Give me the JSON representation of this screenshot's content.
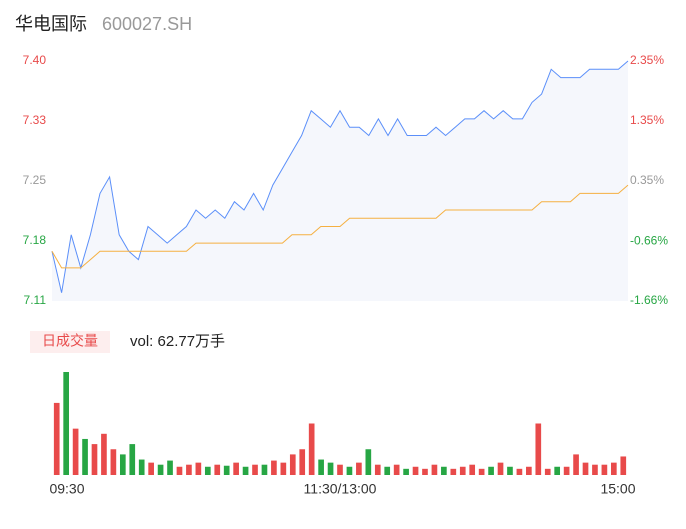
{
  "header": {
    "name": "华电国际",
    "code": "600027.SH"
  },
  "chart_data": [
    {
      "type": "line",
      "x": [
        0,
        4,
        8,
        12,
        16,
        20,
        24,
        28,
        32,
        36,
        40,
        44,
        48,
        52,
        56,
        60,
        64,
        68,
        72,
        76,
        80,
        84,
        88,
        92,
        96,
        100,
        104,
        108,
        112,
        116,
        120,
        124,
        128,
        132,
        136,
        140,
        144,
        148,
        152,
        156,
        160,
        164,
        168,
        172,
        176,
        180,
        184,
        188,
        192,
        196,
        200,
        204,
        208,
        212,
        216,
        220,
        224,
        228,
        232,
        236,
        240
      ],
      "series": [
        {
          "color": "#5b8ff9",
          "values": [
            7.17,
            7.12,
            7.19,
            7.15,
            7.19,
            7.24,
            7.26,
            7.19,
            7.17,
            7.16,
            7.2,
            7.19,
            7.18,
            7.19,
            7.2,
            7.22,
            7.21,
            7.22,
            7.21,
            7.23,
            7.22,
            7.24,
            7.22,
            7.25,
            7.27,
            7.29,
            7.31,
            7.34,
            7.33,
            7.32,
            7.34,
            7.32,
            7.32,
            7.31,
            7.33,
            7.31,
            7.33,
            7.31,
            7.31,
            7.31,
            7.32,
            7.31,
            7.32,
            7.33,
            7.33,
            7.34,
            7.33,
            7.34,
            7.33,
            7.33,
            7.35,
            7.36,
            7.39,
            7.38,
            7.38,
            7.38,
            7.39,
            7.39,
            7.39,
            7.39,
            7.4
          ]
        },
        {
          "color": "#f5b041",
          "values": [
            7.17,
            7.15,
            7.15,
            7.15,
            7.16,
            7.17,
            7.17,
            7.17,
            7.17,
            7.17,
            7.17,
            7.17,
            7.17,
            7.17,
            7.17,
            7.18,
            7.18,
            7.18,
            7.18,
            7.18,
            7.18,
            7.18,
            7.18,
            7.18,
            7.18,
            7.19,
            7.19,
            7.19,
            7.2,
            7.2,
            7.2,
            7.21,
            7.21,
            7.21,
            7.21,
            7.21,
            7.21,
            7.21,
            7.21,
            7.21,
            7.21,
            7.22,
            7.22,
            7.22,
            7.22,
            7.22,
            7.22,
            7.22,
            7.22,
            7.22,
            7.22,
            7.23,
            7.23,
            7.23,
            7.23,
            7.24,
            7.24,
            7.24,
            7.24,
            7.24,
            7.25
          ]
        }
      ],
      "area_color": "#f5f7fc",
      "xlim": [
        0,
        240
      ],
      "ylim": [
        7.11,
        7.4
      ],
      "yticks": [
        {
          "value": 7.11,
          "label": "7.11"
        },
        {
          "value": 7.1825,
          "label": "7.18"
        },
        {
          "value": 7.255,
          "label": "7.25"
        },
        {
          "value": 7.3275,
          "label": "7.33"
        },
        {
          "value": 7.4,
          "label": "7.40"
        }
      ],
      "ytick_colors": [
        "#27a644",
        "#27a644",
        "#999999",
        "#e84a4a",
        "#e84a4a"
      ],
      "y2lim": [
        -1.66,
        2.35
      ],
      "y2ticks": [
        {
          "value": -1.66,
          "label": "-1.66%"
        },
        {
          "value": -0.66,
          "label": "-0.66%"
        },
        {
          "value": 0.35,
          "label": "0.35%"
        },
        {
          "value": 1.35,
          "label": "1.35%"
        },
        {
          "value": 2.35,
          "label": "2.35%"
        }
      ]
    },
    {
      "type": "bar",
      "badge": "日成交量",
      "caption": "vol: 62.77万手",
      "up_color": "#e84a4a",
      "down_color": "#27a644",
      "values": [
        70,
        100,
        45,
        35,
        30,
        40,
        25,
        20,
        30,
        15,
        12,
        10,
        14,
        8,
        10,
        12,
        8,
        10,
        9,
        12,
        8,
        10,
        10,
        14,
        12,
        20,
        25,
        50,
        15,
        12,
        10,
        8,
        12,
        25,
        10,
        8,
        10,
        6,
        8,
        6,
        10,
        8,
        6,
        8,
        10,
        6,
        8,
        12,
        8,
        6,
        8,
        50,
        6,
        8,
        8,
        20,
        12,
        10,
        10,
        12,
        18
      ],
      "ylim": [
        0,
        100
      ],
      "xticks": [
        {
          "value": 0,
          "label": "09:30"
        },
        {
          "value": 120,
          "label": "11:30/13:00"
        },
        {
          "value": 240,
          "label": "15:00"
        }
      ]
    }
  ]
}
